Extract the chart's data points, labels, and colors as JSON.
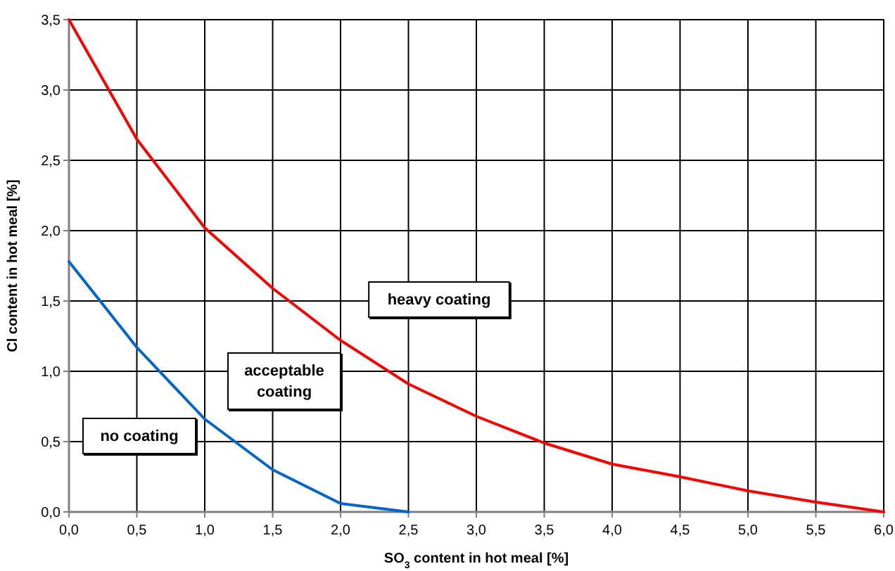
{
  "chart_data": {
    "type": "line",
    "xlabel": "SO$_{3}$ content in hot meal [%]",
    "ylabel": "Cl content in hot meal [%]",
    "xlim": [
      0,
      6
    ],
    "ylim": [
      0,
      3.5
    ],
    "xticks": [
      {
        "value": 0,
        "label": "0,0"
      },
      {
        "value": 0.5,
        "label": "0,5"
      },
      {
        "value": 1,
        "label": "1,0"
      },
      {
        "value": 1.5,
        "label": "1,5"
      },
      {
        "value": 2,
        "label": "2,0"
      },
      {
        "value": 2.5,
        "label": "2,5"
      },
      {
        "value": 3,
        "label": "3,0"
      },
      {
        "value": 3.5,
        "label": "3,5"
      },
      {
        "value": 4,
        "label": "4,0"
      },
      {
        "value": 4.5,
        "label": "4,5"
      },
      {
        "value": 5,
        "label": "5,0"
      },
      {
        "value": 5.5,
        "label": "5,5"
      },
      {
        "value": 6,
        "label": "6,0"
      }
    ],
    "yticks": [
      {
        "value": 0,
        "label": "0,0"
      },
      {
        "value": 0.5,
        "label": "0,5"
      },
      {
        "value": 1,
        "label": "1,0"
      },
      {
        "value": 1.5,
        "label": "1,5"
      },
      {
        "value": 2,
        "label": "2,0"
      },
      {
        "value": 2.5,
        "label": "2,5"
      },
      {
        "value": 3,
        "label": "3,0"
      },
      {
        "value": 3.5,
        "label": "3,5"
      }
    ],
    "grid": true,
    "marker": "none",
    "line_style": "solid",
    "series": [
      {
        "color": "#ff0000",
        "x": [
          0,
          0.5,
          1,
          1.5,
          2,
          2.5,
          3,
          3.5,
          4,
          4.5,
          5,
          5.5,
          6
        ],
        "values": [
          3.5,
          2.65,
          2.02,
          1.59,
          1.22,
          0.91,
          0.68,
          0.49,
          0.34,
          0.25,
          0.15,
          0.07,
          0
        ]
      },
      {
        "color": "#0066cc",
        "x": [
          0,
          0.5,
          1,
          1.5,
          2,
          2.5
        ],
        "values": [
          1.78,
          1.17,
          0.66,
          0.3,
          0.06,
          0
        ]
      }
    ],
    "annotations": [
      "heavy coating",
      "acceptable coating",
      "no coating"
    ]
  }
}
